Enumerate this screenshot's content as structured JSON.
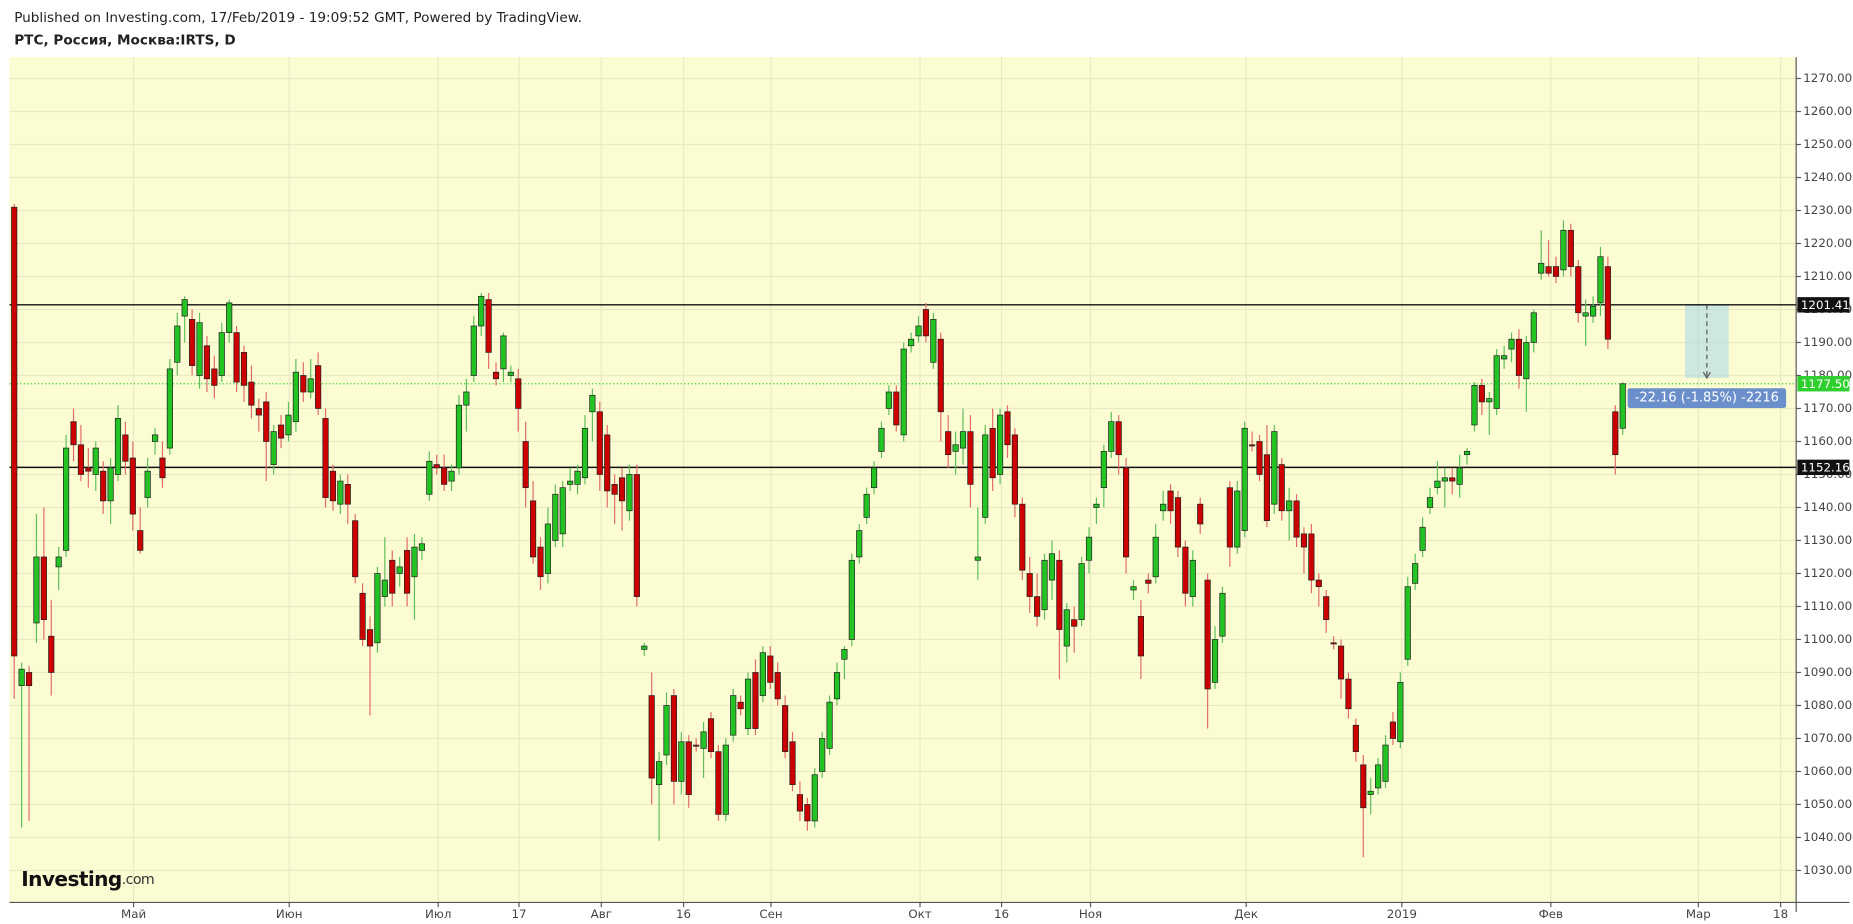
{
  "chart_data": {
    "type": "candlestick",
    "header": "Published on Investing.com, 17/Feb/2019 - 19:09:52 GMT, Powered by TradingView.",
    "title": "РТС, Россия, Москва:IRTS, D",
    "logo": {
      "brand": "Investing",
      "suffix": ".com"
    },
    "up_color": "#22c322",
    "down_color": "#cc0000",
    "background": "#fcfcd2",
    "grid": true,
    "xlim": [
      -0.64,
      240.4
    ],
    "ylim": [
      1020.3,
      1276.5
    ],
    "xticks": [
      {
        "value": 16.1,
        "label": "Май"
      },
      {
        "value": 37.1,
        "label": "Июн"
      },
      {
        "value": 57.2,
        "label": "Июл"
      },
      {
        "value": 68.1,
        "label": "17"
      },
      {
        "value": 79.2,
        "label": "Авг"
      },
      {
        "value": 90.3,
        "label": "16"
      },
      {
        "value": 102.1,
        "label": "Сен"
      },
      {
        "value": 122.2,
        "label": "Окт"
      },
      {
        "value": 133.2,
        "label": "16"
      },
      {
        "value": 145.2,
        "label": "Ноя"
      },
      {
        "value": 166.2,
        "label": "Дек"
      },
      {
        "value": 187.2,
        "label": "2019"
      },
      {
        "value": 207.3,
        "label": "Фев"
      },
      {
        "value": 227.2,
        "label": "Мар"
      },
      {
        "value": 238.3,
        "label": "18"
      }
    ],
    "yticks": [
      {
        "value": 1030,
        "label": "1030.00"
      },
      {
        "value": 1040,
        "label": "1040.00"
      },
      {
        "value": 1050,
        "label": "1050.00"
      },
      {
        "value": 1060,
        "label": "1060.00"
      },
      {
        "value": 1070,
        "label": "1070.00"
      },
      {
        "value": 1080,
        "label": "1080.00"
      },
      {
        "value": 1090,
        "label": "1090.00"
      },
      {
        "value": 1100,
        "label": "1100.00"
      },
      {
        "value": 1110,
        "label": "1110.00"
      },
      {
        "value": 1120,
        "label": "1120.00"
      },
      {
        "value": 1130,
        "label": "1130.00"
      },
      {
        "value": 1140,
        "label": "1140.00"
      },
      {
        "value": 1150,
        "label": "1150.00"
      },
      {
        "value": 1160,
        "label": "1160.00"
      },
      {
        "value": 1170,
        "label": "1170.00"
      },
      {
        "value": 1180,
        "label": "1180.00"
      },
      {
        "value": 1190,
        "label": "1190.00"
      },
      {
        "value": 1200,
        "label": "1200.00"
      },
      {
        "value": 1210,
        "label": "1210.00"
      },
      {
        "value": 1220,
        "label": "1220.00"
      },
      {
        "value": 1230,
        "label": "1230.00"
      },
      {
        "value": 1240,
        "label": "1240.00"
      },
      {
        "value": 1250,
        "label": "1250.00"
      },
      {
        "value": 1260,
        "label": "1260.00"
      },
      {
        "value": 1270,
        "label": "1270.00"
      }
    ],
    "hlines": [
      {
        "value": 1201.41,
        "label": "1201.41"
      },
      {
        "value": 1152.16,
        "label": "1152.16"
      }
    ],
    "last_price": {
      "value": 1177.5,
      "label": "1177.50"
    },
    "measure": {
      "x": [
        225.4,
        231.3
      ],
      "y": [
        1201.41,
        1179.25
      ],
      "label": "-22.16 (-1.85%) -2216"
    },
    "candles": [
      [
        1231,
        1232,
        1082,
        1095
      ],
      [
        1086,
        1093,
        1043,
        1091
      ],
      [
        1090,
        1092,
        1045,
        1086
      ],
      [
        1105,
        1138,
        1099,
        1125
      ],
      [
        1125,
        1140,
        1100,
        1106
      ],
      [
        1101,
        1112,
        1083,
        1090
      ],
      [
        1122,
        1128,
        1115,
        1125
      ],
      [
        1127,
        1162,
        1125,
        1158
      ],
      [
        1166,
        1170,
        1154,
        1159
      ],
      [
        1159,
        1165,
        1148,
        1150
      ],
      [
        1152,
        1158,
        1146,
        1151
      ],
      [
        1150,
        1160,
        1145,
        1158
      ],
      [
        1151,
        1154,
        1138,
        1142
      ],
      [
        1142,
        1155,
        1135,
        1152
      ],
      [
        1150,
        1171,
        1148,
        1167
      ],
      [
        1162,
        1166,
        1150,
        1154
      ],
      [
        1155,
        1160,
        1133,
        1138
      ],
      [
        1133,
        1140,
        1126,
        1127
      ],
      [
        1143,
        1155,
        1140,
        1151
      ],
      [
        1160,
        1164,
        1156,
        1162
      ],
      [
        1155,
        1160,
        1146,
        1149
      ],
      [
        1158,
        1185,
        1156,
        1182
      ],
      [
        1184,
        1199,
        1180,
        1195
      ],
      [
        1198,
        1204,
        1190,
        1203
      ],
      [
        1197,
        1200,
        1180,
        1183
      ],
      [
        1180,
        1199,
        1176,
        1196
      ],
      [
        1189,
        1192,
        1175,
        1179
      ],
      [
        1182,
        1186,
        1173,
        1177
      ],
      [
        1180,
        1196,
        1178,
        1193
      ],
      [
        1193,
        1203,
        1190,
        1202
      ],
      [
        1193,
        1195,
        1175,
        1178
      ],
      [
        1187,
        1189,
        1172,
        1177
      ],
      [
        1178,
        1183,
        1167,
        1171
      ],
      [
        1170,
        1173,
        1163,
        1168
      ],
      [
        1172,
        1175,
        1148,
        1160
      ],
      [
        1153,
        1165,
        1150,
        1163
      ],
      [
        1165,
        1168,
        1158,
        1161
      ],
      [
        1162,
        1172,
        1160,
        1168
      ],
      [
        1166,
        1185,
        1163,
        1181
      ],
      [
        1180,
        1184,
        1172,
        1175
      ],
      [
        1175,
        1185,
        1173,
        1179
      ],
      [
        1183,
        1187,
        1168,
        1170
      ],
      [
        1167,
        1170,
        1140,
        1143
      ],
      [
        1151,
        1153,
        1139,
        1142
      ],
      [
        1141,
        1150,
        1138,
        1148
      ],
      [
        1147,
        1150,
        1135,
        1141
      ],
      [
        1136,
        1138,
        1117,
        1119
      ],
      [
        1114,
        1117,
        1098,
        1100
      ],
      [
        1103,
        1107,
        1077,
        1098
      ],
      [
        1099,
        1122,
        1096,
        1120
      ],
      [
        1113,
        1131,
        1110,
        1118
      ],
      [
        1124,
        1127,
        1110,
        1114
      ],
      [
        1120,
        1125,
        1116,
        1122
      ],
      [
        1127,
        1131,
        1110,
        1114
      ],
      [
        1119,
        1132,
        1106,
        1128
      ],
      [
        1127,
        1131,
        1124,
        1129
      ],
      [
        1144,
        1157,
        1142,
        1154
      ],
      [
        1153,
        1156,
        1150,
        1152
      ],
      [
        1152,
        1156,
        1145,
        1147
      ],
      [
        1148,
        1153,
        1145,
        1151
      ],
      [
        1152,
        1174,
        1150,
        1171
      ],
      [
        1171,
        1179,
        1163,
        1175
      ],
      [
        1180,
        1198,
        1178,
        1195
      ],
      [
        1195,
        1205,
        1192,
        1204
      ],
      [
        1203,
        1205,
        1182,
        1187
      ],
      [
        1181,
        1184,
        1177,
        1179
      ],
      [
        1182,
        1193,
        1178,
        1192
      ],
      [
        1180,
        1183,
        1178,
        1181
      ],
      [
        1179,
        1182,
        1163,
        1170
      ],
      [
        1160,
        1166,
        1140,
        1146
      ],
      [
        1142,
        1148,
        1123,
        1125
      ],
      [
        1128,
        1131,
        1115,
        1119
      ],
      [
        1120,
        1140,
        1117,
        1135
      ],
      [
        1130,
        1147,
        1128,
        1144
      ],
      [
        1132,
        1148,
        1128,
        1146
      ],
      [
        1147,
        1152,
        1145,
        1148
      ],
      [
        1147,
        1153,
        1144,
        1151
      ],
      [
        1149,
        1168,
        1147,
        1164
      ],
      [
        1169,
        1176,
        1160,
        1174
      ],
      [
        1169,
        1172,
        1145,
        1150
      ],
      [
        1162,
        1165,
        1140,
        1145
      ],
      [
        1147,
        1150,
        1135,
        1144
      ],
      [
        1149,
        1152,
        1133,
        1142
      ],
      [
        1139,
        1153,
        1136,
        1150
      ],
      [
        1150,
        1153,
        1110,
        1113
      ],
      [
        1097,
        1099,
        1095,
        1098
      ],
      [
        1083,
        1090,
        1050,
        1058
      ],
      [
        1056,
        1066,
        1039,
        1063
      ],
      [
        1065,
        1084,
        1062,
        1080
      ],
      [
        1083,
        1085,
        1050,
        1057
      ],
      [
        1057,
        1072,
        1053,
        1069
      ],
      [
        1069,
        1071,
        1049,
        1053
      ],
      [
        1068,
        1070,
        1066,
        1068
      ],
      [
        1067,
        1075,
        1058,
        1072
      ],
      [
        1076,
        1078,
        1064,
        1066
      ],
      [
        1066,
        1068,
        1045,
        1047
      ],
      [
        1047,
        1070,
        1045,
        1068
      ],
      [
        1071,
        1085,
        1069,
        1083
      ],
      [
        1081,
        1083,
        1077,
        1079
      ],
      [
        1073,
        1090,
        1071,
        1088
      ],
      [
        1090,
        1094,
        1071,
        1073
      ],
      [
        1083,
        1098,
        1081,
        1096
      ],
      [
        1095,
        1098,
        1085,
        1087
      ],
      [
        1090,
        1093,
        1080,
        1082
      ],
      [
        1080,
        1083,
        1064,
        1066
      ],
      [
        1069,
        1072,
        1054,
        1056
      ],
      [
        1053,
        1057,
        1045,
        1048
      ],
      [
        1050,
        1052,
        1042,
        1045
      ],
      [
        1045,
        1061,
        1043,
        1059
      ],
      [
        1060,
        1072,
        1058,
        1070
      ],
      [
        1067,
        1083,
        1065,
        1081
      ],
      [
        1082,
        1093,
        1080,
        1090
      ],
      [
        1094,
        1098,
        1088,
        1097
      ],
      [
        1100,
        1126,
        1098,
        1124
      ],
      [
        1125,
        1135,
        1123,
        1133
      ],
      [
        1137,
        1146,
        1135,
        1144
      ],
      [
        1146,
        1154,
        1144,
        1152
      ],
      [
        1157,
        1166,
        1155,
        1164
      ],
      [
        1170,
        1177,
        1168,
        1175
      ],
      [
        1175,
        1177,
        1163,
        1165
      ],
      [
        1162,
        1190,
        1160,
        1188
      ],
      [
        1189,
        1193,
        1187,
        1191
      ],
      [
        1192,
        1198,
        1190,
        1195
      ],
      [
        1200,
        1202,
        1190,
        1192
      ],
      [
        1184,
        1199,
        1182,
        1197
      ],
      [
        1191,
        1193,
        1160,
        1169
      ],
      [
        1163,
        1168,
        1152,
        1156
      ],
      [
        1157,
        1163,
        1150,
        1159
      ],
      [
        1158,
        1170,
        1153,
        1163
      ],
      [
        1163,
        1168,
        1140,
        1147
      ],
      [
        1124,
        1140,
        1118,
        1125
      ],
      [
        1137,
        1165,
        1135,
        1162
      ],
      [
        1164,
        1170,
        1145,
        1149
      ],
      [
        1150,
        1170,
        1147,
        1168
      ],
      [
        1169,
        1171,
        1155,
        1159
      ],
      [
        1162,
        1164,
        1137,
        1141
      ],
      [
        1141,
        1143,
        1118,
        1121
      ],
      [
        1120,
        1125,
        1108,
        1113
      ],
      [
        1113,
        1120,
        1104,
        1107
      ],
      [
        1109,
        1126,
        1106,
        1124
      ],
      [
        1118,
        1130,
        1112,
        1126
      ],
      [
        1124,
        1127,
        1088,
        1103
      ],
      [
        1098,
        1111,
        1093,
        1109
      ],
      [
        1106,
        1110,
        1096,
        1104
      ],
      [
        1106,
        1125,
        1104,
        1123
      ],
      [
        1124,
        1134,
        1120,
        1131
      ],
      [
        1140,
        1143,
        1135,
        1141
      ],
      [
        1146,
        1159,
        1140,
        1157
      ],
      [
        1157,
        1169,
        1155,
        1166
      ],
      [
        1166,
        1168,
        1150,
        1156
      ],
      [
        1152,
        1155,
        1120,
        1125
      ],
      [
        1115,
        1118,
        1112,
        1116
      ],
      [
        1107,
        1112,
        1088,
        1095
      ],
      [
        1118,
        1120,
        1114,
        1117
      ],
      [
        1119,
        1135,
        1117,
        1131
      ],
      [
        1139,
        1145,
        1136,
        1141
      ],
      [
        1145,
        1147,
        1135,
        1139
      ],
      [
        1143,
        1145,
        1125,
        1128
      ],
      [
        1128,
        1130,
        1110,
        1114
      ],
      [
        1113,
        1127,
        1110,
        1124
      ],
      [
        1141,
        1143,
        1132,
        1135
      ],
      [
        1118,
        1120,
        1073,
        1085
      ],
      [
        1087,
        1104,
        1085,
        1100
      ],
      [
        1101,
        1116,
        1099,
        1114
      ],
      [
        1146,
        1148,
        1122,
        1128
      ],
      [
        1128,
        1148,
        1126,
        1145
      ],
      [
        1133,
        1166,
        1131,
        1164
      ],
      [
        1159,
        1163,
        1157,
        1159
      ],
      [
        1160,
        1162,
        1148,
        1150
      ],
      [
        1156,
        1165,
        1134,
        1136
      ],
      [
        1141,
        1165,
        1138,
        1163
      ],
      [
        1153,
        1155,
        1136,
        1139
      ],
      [
        1139,
        1146,
        1130,
        1142
      ],
      [
        1142,
        1144,
        1128,
        1131
      ],
      [
        1132,
        1134,
        1120,
        1128
      ],
      [
        1132,
        1135,
        1114,
        1118
      ],
      [
        1118,
        1120,
        1110,
        1116
      ],
      [
        1113,
        1115,
        1102,
        1106
      ],
      [
        1099,
        1101,
        1097,
        1099
      ],
      [
        1098,
        1100,
        1082,
        1088
      ],
      [
        1088,
        1090,
        1076,
        1079
      ],
      [
        1074,
        1076,
        1063,
        1066
      ],
      [
        1062,
        1065,
        1034,
        1049
      ],
      [
        1053,
        1058,
        1047,
        1054
      ],
      [
        1055,
        1064,
        1053,
        1062
      ],
      [
        1057,
        1071,
        1055,
        1068
      ],
      [
        1075,
        1078,
        1068,
        1070
      ],
      [
        1069,
        1090,
        1067,
        1087
      ],
      [
        1094,
        1119,
        1092,
        1116
      ],
      [
        1117,
        1126,
        1115,
        1123
      ],
      [
        1127,
        1137,
        1125,
        1134
      ],
      [
        1140,
        1146,
        1138,
        1143
      ],
      [
        1146,
        1154,
        1144,
        1148
      ],
      [
        1148,
        1152,
        1140,
        1149
      ],
      [
        1149,
        1152,
        1144,
        1148
      ],
      [
        1147,
        1156,
        1143,
        1152
      ],
      [
        1156,
        1158,
        1153,
        1157
      ],
      [
        1165,
        1178,
        1163,
        1177
      ],
      [
        1177,
        1179,
        1168,
        1172
      ],
      [
        1172,
        1175,
        1162,
        1173
      ],
      [
        1170,
        1188,
        1168,
        1186
      ],
      [
        1185,
        1189,
        1182,
        1186
      ],
      [
        1188,
        1193,
        1184,
        1191
      ],
      [
        1191,
        1194,
        1176,
        1180
      ],
      [
        1179,
        1192,
        1169,
        1190
      ],
      [
        1190,
        1200,
        1187,
        1199
      ],
      [
        1211,
        1224,
        1209,
        1214
      ],
      [
        1213,
        1221,
        1210,
        1211
      ],
      [
        1213,
        1216,
        1208,
        1210
      ],
      [
        1212,
        1227,
        1210,
        1224
      ],
      [
        1224,
        1226,
        1210,
        1213
      ],
      [
        1213,
        1215,
        1196,
        1199
      ],
      [
        1198,
        1203,
        1189,
        1199
      ],
      [
        1198,
        1204,
        1196,
        1201
      ],
      [
        1202,
        1219,
        1198,
        1216
      ],
      [
        1213,
        1216,
        1188,
        1191
      ],
      [
        1169,
        1171,
        1150,
        1156
      ],
      [
        1164,
        1178,
        1162,
        1177.5
      ]
    ]
  }
}
